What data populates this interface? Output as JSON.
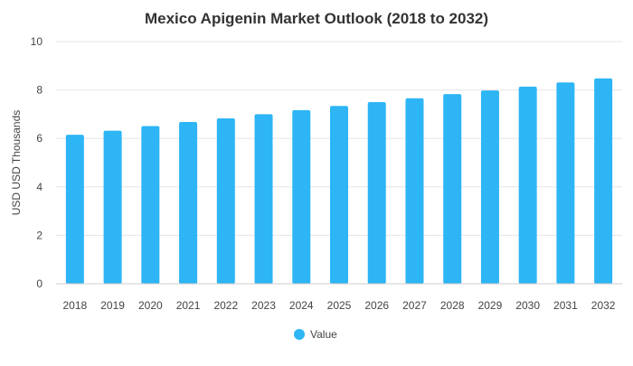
{
  "chart_data": {
    "type": "bar",
    "title": "Mexico Apigenin Market Outlook (2018 to 2032)",
    "xlabel": "",
    "ylabel": "USD USD Thousands",
    "categories": [
      "2018",
      "2019",
      "2020",
      "2021",
      "2022",
      "2023",
      "2024",
      "2025",
      "2026",
      "2027",
      "2028",
      "2029",
      "2030",
      "2031",
      "2032"
    ],
    "series": [
      {
        "name": "Value",
        "values": [
          6.15,
          6.32,
          6.51,
          6.68,
          6.83,
          7.0,
          7.17,
          7.34,
          7.5,
          7.66,
          7.83,
          7.98,
          8.14,
          8.31,
          8.48
        ]
      }
    ],
    "ylim": [
      0,
      10
    ],
    "yticks": [
      0,
      2,
      4,
      6,
      8,
      10
    ],
    "grid": true,
    "legend": "bottom-center"
  },
  "colors": {
    "bar": "#2db5f5",
    "title": "#333333",
    "text": "#444444",
    "grid": "#e6e6e6"
  }
}
